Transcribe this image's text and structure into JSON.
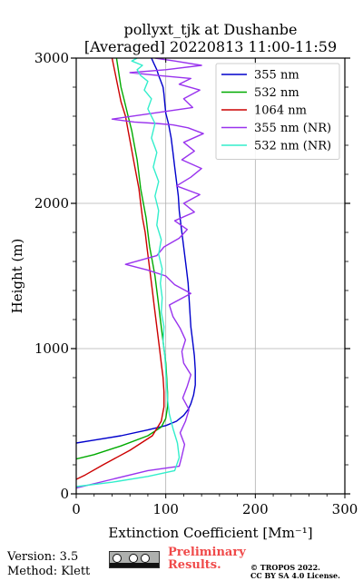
{
  "chart_data": {
    "type": "line",
    "title": "pollyxt_tjk at Dushanbe",
    "subtitle": "[Averaged] 20220813 11:00-11:59",
    "xlabel": "Extinction Coefficient [Mm⁻¹]",
    "ylabel": "Height (m)",
    "xlim": [
      0,
      300
    ],
    "ylim": [
      0,
      3000
    ],
    "xticks": [
      "0",
      "100",
      "200",
      "300"
    ],
    "yticks": [
      "0",
      "1000",
      "2000",
      "3000"
    ],
    "grid": true,
    "legend_position": "top-right",
    "series": [
      {
        "name": "355 nm",
        "color": "#0000cc",
        "x": [
          0,
          20,
          50,
          80,
          100,
          112,
          120,
          125,
          128,
          131,
          133,
          133,
          132,
          130,
          128,
          127,
          126,
          125,
          123,
          121,
          119,
          117,
          115,
          114,
          112,
          110,
          108,
          106,
          103,
          100,
          99,
          98,
          97,
          94,
          92,
          90,
          87,
          84
        ],
        "y": [
          350,
          370,
          400,
          440,
          470,
          500,
          540,
          580,
          620,
          680,
          750,
          850,
          950,
          1050,
          1150,
          1250,
          1350,
          1450,
          1550,
          1650,
          1750,
          1850,
          1950,
          2050,
          2150,
          2250,
          2350,
          2450,
          2550,
          2620,
          2680,
          2750,
          2800,
          2850,
          2880,
          2920,
          2960,
          3000
        ]
      },
      {
        "name": "532 nm",
        "color": "#00aa00",
        "x": [
          0,
          20,
          50,
          80,
          95,
          100,
          102,
          102,
          101,
          100,
          98,
          96,
          94,
          92,
          90,
          88,
          85,
          82,
          80,
          78,
          75,
          72,
          70,
          68,
          65,
          62,
          58,
          54,
          50,
          45
        ],
        "y": [
          240,
          270,
          330,
          400,
          460,
          520,
          600,
          700,
          800,
          900,
          1000,
          1100,
          1200,
          1300,
          1400,
          1500,
          1600,
          1700,
          1800,
          1900,
          2000,
          2100,
          2200,
          2300,
          2400,
          2500,
          2600,
          2700,
          2800,
          3000
        ]
      },
      {
        "name": "1064 nm",
        "color": "#cc0000",
        "x": [
          0,
          10,
          30,
          60,
          85,
          95,
          98,
          98,
          97,
          95,
          93,
          91,
          89,
          87,
          85,
          83,
          81,
          79,
          77,
          74,
          72,
          70,
          67,
          64,
          61,
          58,
          55,
          50,
          45,
          40
        ],
        "y": [
          100,
          130,
          200,
          300,
          400,
          500,
          600,
          700,
          800,
          900,
          1000,
          1100,
          1200,
          1300,
          1400,
          1500,
          1600,
          1700,
          1800,
          1900,
          2000,
          2100,
          2200,
          2300,
          2400,
          2500,
          2600,
          2700,
          2850,
          3000
        ]
      },
      {
        "name": "355 nm (NR)",
        "color": "#9933ee",
        "x": [
          0,
          40,
          80,
          115,
          118,
          121,
          116,
          122,
          126,
          119,
          124,
          128,
          120,
          118,
          122,
          116,
          108,
          104,
          128,
          110,
          100,
          80,
          55,
          90,
          98,
          115,
          124,
          110,
          132,
          120,
          138,
          112,
          128,
          140,
          118,
          132,
          120,
          142,
          125,
          108,
          90,
          65,
          40,
          85,
          130,
          120,
          138,
          115,
          128,
          92,
          60,
          100,
          140,
          110,
          88
        ],
        "y": [
          40,
          100,
          160,
          190,
          260,
          340,
          420,
          500,
          580,
          660,
          740,
          820,
          900,
          980,
          1060,
          1140,
          1220,
          1300,
          1380,
          1440,
          1500,
          1540,
          1580,
          1640,
          1700,
          1760,
          1820,
          1880,
          1940,
          2000,
          2060,
          2120,
          2180,
          2240,
          2300,
          2360,
          2420,
          2480,
          2520,
          2540,
          2550,
          2560,
          2580,
          2620,
          2660,
          2720,
          2780,
          2820,
          2860,
          2880,
          2900,
          2920,
          2950,
          2980,
          3000
        ]
      },
      {
        "name": "532 nm (NR)",
        "color": "#33eecc",
        "x": [
          0,
          40,
          80,
          110,
          115,
          113,
          108,
          104,
          102,
          101,
          100,
          99,
          97,
          98,
          95,
          96,
          94,
          96,
          92,
          95,
          90,
          92,
          88,
          92,
          86,
          90,
          84,
          88,
          80,
          84,
          76,
          80,
          72,
          68,
          74,
          62,
          68
        ],
        "y": [
          50,
          80,
          120,
          160,
          250,
          350,
          450,
          550,
          650,
          750,
          850,
          950,
          1050,
          1150,
          1250,
          1350,
          1450,
          1550,
          1650,
          1750,
          1850,
          1950,
          2050,
          2150,
          2250,
          2350,
          2450,
          2550,
          2650,
          2720,
          2780,
          2840,
          2880,
          2920,
          2950,
          2980,
          3000
        ]
      }
    ]
  },
  "footer": {
    "version": "Version: 3.5",
    "method": "Method: Klett",
    "preliminary": "Preliminary Results.",
    "copyright_line1": "© TROPOS 2022.",
    "copyright_line2": "CC BY SA 4.0 License.",
    "license_badge_icon": "cc-by-sa-icon"
  }
}
